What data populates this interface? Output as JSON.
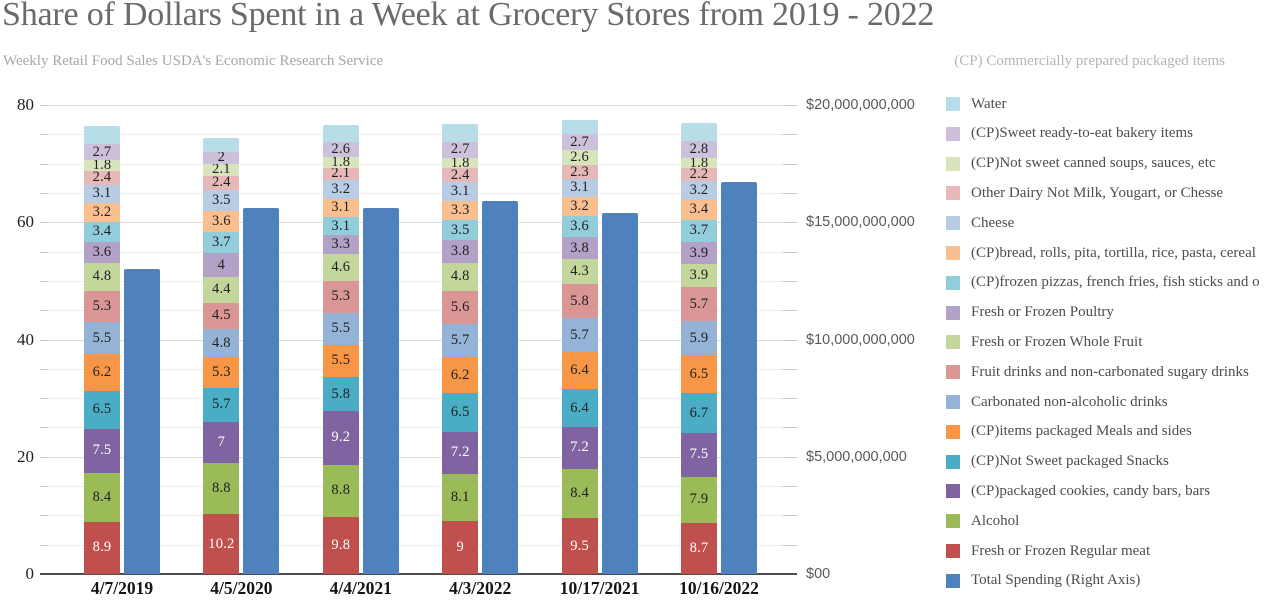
{
  "header": {
    "title": "Share of Dollars Spent in a Week at Grocery Stores from 2019 - 2022",
    "subtitle_left": "Weekly Retail Food Sales USDA's Economic Research Service",
    "subtitle_right": "(CP) Commercially prepared packaged items"
  },
  "chart_data": {
    "type": "bar",
    "variant": "stacked-columns-with-secondary-axis-column",
    "title": "Share of Dollars Spent in a Week at Grocery Stores from 2019 - 2022",
    "categories": [
      "4/7/2019",
      "4/5/2020",
      "4/4/2021",
      "4/3/2022",
      "10/17/2021",
      "10/16/2022"
    ],
    "left_axis": {
      "min": 0,
      "max": 80,
      "tick_labels": [
        "0",
        "20",
        "40",
        "60",
        "80"
      ],
      "gridline_step": 5,
      "grid": true
    },
    "right_axis": {
      "min": 0,
      "max": 20000000000,
      "tick_labels": [
        "$00",
        "$5,000,000,000",
        "$10,000,000,000",
        "$15,000,000,000",
        "$20,000,000,000"
      ]
    },
    "stack_series_bottom_to_top": [
      {
        "name": "Fresh or Frozen Regular meat",
        "color": "#c0504d",
        "label_color": "#ffffff",
        "values": [
          8.9,
          10.2,
          9.8,
          9,
          9.5,
          8.7
        ]
      },
      {
        "name": "Alcohol",
        "color": "#9bbb59",
        "label_color": "#1f1f1f",
        "values": [
          8.4,
          8.8,
          8.8,
          8.1,
          8.4,
          7.9
        ]
      },
      {
        "name": "(CP)packaged cookies, candy bars, bars",
        "color": "#8064a2",
        "label_color": "#ffffff",
        "values": [
          7.5,
          7,
          9.2,
          7.2,
          7.2,
          7.5
        ]
      },
      {
        "name": "(CP)Not Sweet packaged Snacks",
        "color": "#4bacc6",
        "label_color": "#1f1f1f",
        "values": [
          6.5,
          5.7,
          5.8,
          6.5,
          6.4,
          6.7
        ]
      },
      {
        "name": "(CP)items packaged Meals and sides",
        "color": "#f79646",
        "label_color": "#1f1f1f",
        "values": [
          6.2,
          5.3,
          5.5,
          6.2,
          6.4,
          6.5
        ]
      },
      {
        "name": "Carbonated non-alcoholic drinks",
        "color": "#95b3d7",
        "label_color": "#1f1f1f",
        "values": [
          5.5,
          4.8,
          5.5,
          5.7,
          5.7,
          5.9
        ]
      },
      {
        "name": "Fruit drinks and non-carbonated sugary drinks",
        "color": "#d99694",
        "label_color": "#1f1f1f",
        "values": [
          5.3,
          4.5,
          5.3,
          5.6,
          5.8,
          5.7
        ]
      },
      {
        "name": "Fresh or Frozen Whole Fruit",
        "color": "#c3d69b",
        "label_color": "#1f1f1f",
        "values": [
          4.8,
          4.4,
          4.6,
          4.8,
          4.3,
          3.9
        ]
      },
      {
        "name": "Fresh or Frozen Poultry",
        "color": "#b2a2c7",
        "label_color": "#1f1f1f",
        "values": [
          3.6,
          4,
          3.3,
          3.8,
          3.8,
          3.9
        ]
      },
      {
        "name": "(CP)frozen pizzas, french fries, fish sticks and o",
        "color": "#92cddc",
        "label_color": "#1f1f1f",
        "values": [
          3.4,
          3.7,
          3.1,
          3.5,
          3.6,
          3.7
        ]
      },
      {
        "name": "(CP)bread, rolls, pita, tortilla, rice, pasta, cereal",
        "color": "#fabf8f",
        "label_color": "#1f1f1f",
        "values": [
          3.2,
          3.6,
          3.1,
          3.3,
          3.2,
          3.4
        ]
      },
      {
        "name": "Cheese",
        "color": "#b8cce4",
        "label_color": "#1f1f1f",
        "values": [
          3.1,
          3.5,
          3.2,
          3.1,
          3.1,
          3.2
        ]
      },
      {
        "name": "Other Dairy Not Milk, Yougart, or Chesse",
        "color": "#e6b9b8",
        "label_color": "#1f1f1f",
        "values": [
          2.4,
          2.4,
          2.1,
          2.4,
          2.3,
          2.2
        ]
      },
      {
        "name": "(CP)Not sweet canned soups, sauces, etc",
        "color": "#d7e4bc",
        "label_color": "#1f1f1f",
        "values": [
          1.8,
          2.1,
          1.8,
          1.8,
          2.6,
          1.8
        ]
      },
      {
        "name": "(CP)Sweet ready-to-eat bakery items",
        "color": "#ccc0da",
        "label_color": "#1f1f1f",
        "values": [
          2.7,
          2,
          2.6,
          2.7,
          2.7,
          2.8
        ]
      },
      {
        "name": "Water",
        "color": "#b7dee8",
        "labels_hidden": true,
        "values": [
          3.1,
          2.4,
          2.9,
          3.1,
          2.5,
          3.2
        ]
      }
    ],
    "secondary_series": {
      "name": "Total Spending (Right Axis)",
      "color": "#4f81bd",
      "axis": "right",
      "values_usd": [
        13000000000,
        15600000000,
        15600000000,
        15900000000,
        15400000000,
        16700000000
      ]
    },
    "legend_position": "right",
    "legend_order": "reverse-of-stack-then-secondary"
  }
}
